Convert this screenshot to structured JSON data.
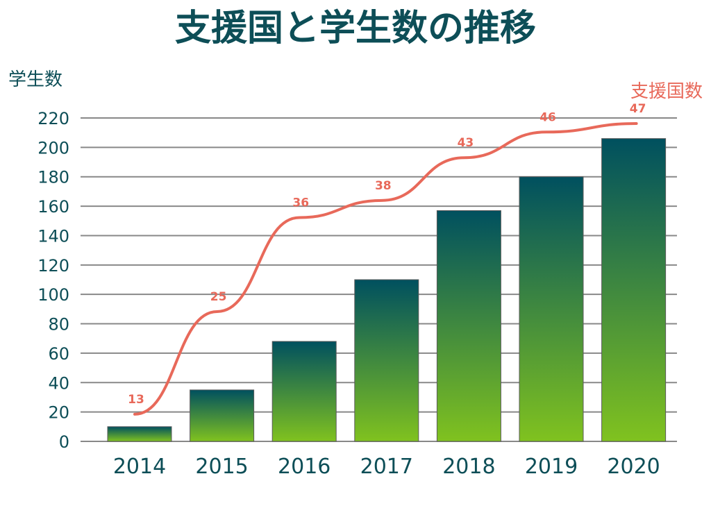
{
  "colors": {
    "title": "#0d4e57",
    "axis_text": "#0d4e57",
    "grid": "#888888",
    "bar_top": "#00505f",
    "bar_bottom": "#80c21f",
    "line": "#e8695a",
    "line_label": "#e8695a"
  },
  "chart_data": {
    "type": "bar",
    "title": "支援国と学生数の推移",
    "ylabel": "学生数",
    "line_label": "支援国数",
    "categories": [
      "2014",
      "2015",
      "2016",
      "2017",
      "2018",
      "2019",
      "2020"
    ],
    "ylim": [
      0,
      220
    ],
    "yticks": [
      "0",
      "20",
      "40",
      "60",
      "80",
      "100",
      "120",
      "140",
      "160",
      "180",
      "200",
      "220"
    ],
    "grid": true,
    "series": [
      {
        "type": "bar",
        "values": [
          10,
          35,
          68,
          110,
          157,
          180,
          206
        ]
      },
      {
        "type": "line",
        "values": [
          13,
          25,
          36,
          38,
          43,
          46,
          47
        ],
        "labels": [
          "13",
          "25",
          "36",
          "38",
          "43",
          "46",
          "47"
        ]
      }
    ]
  }
}
